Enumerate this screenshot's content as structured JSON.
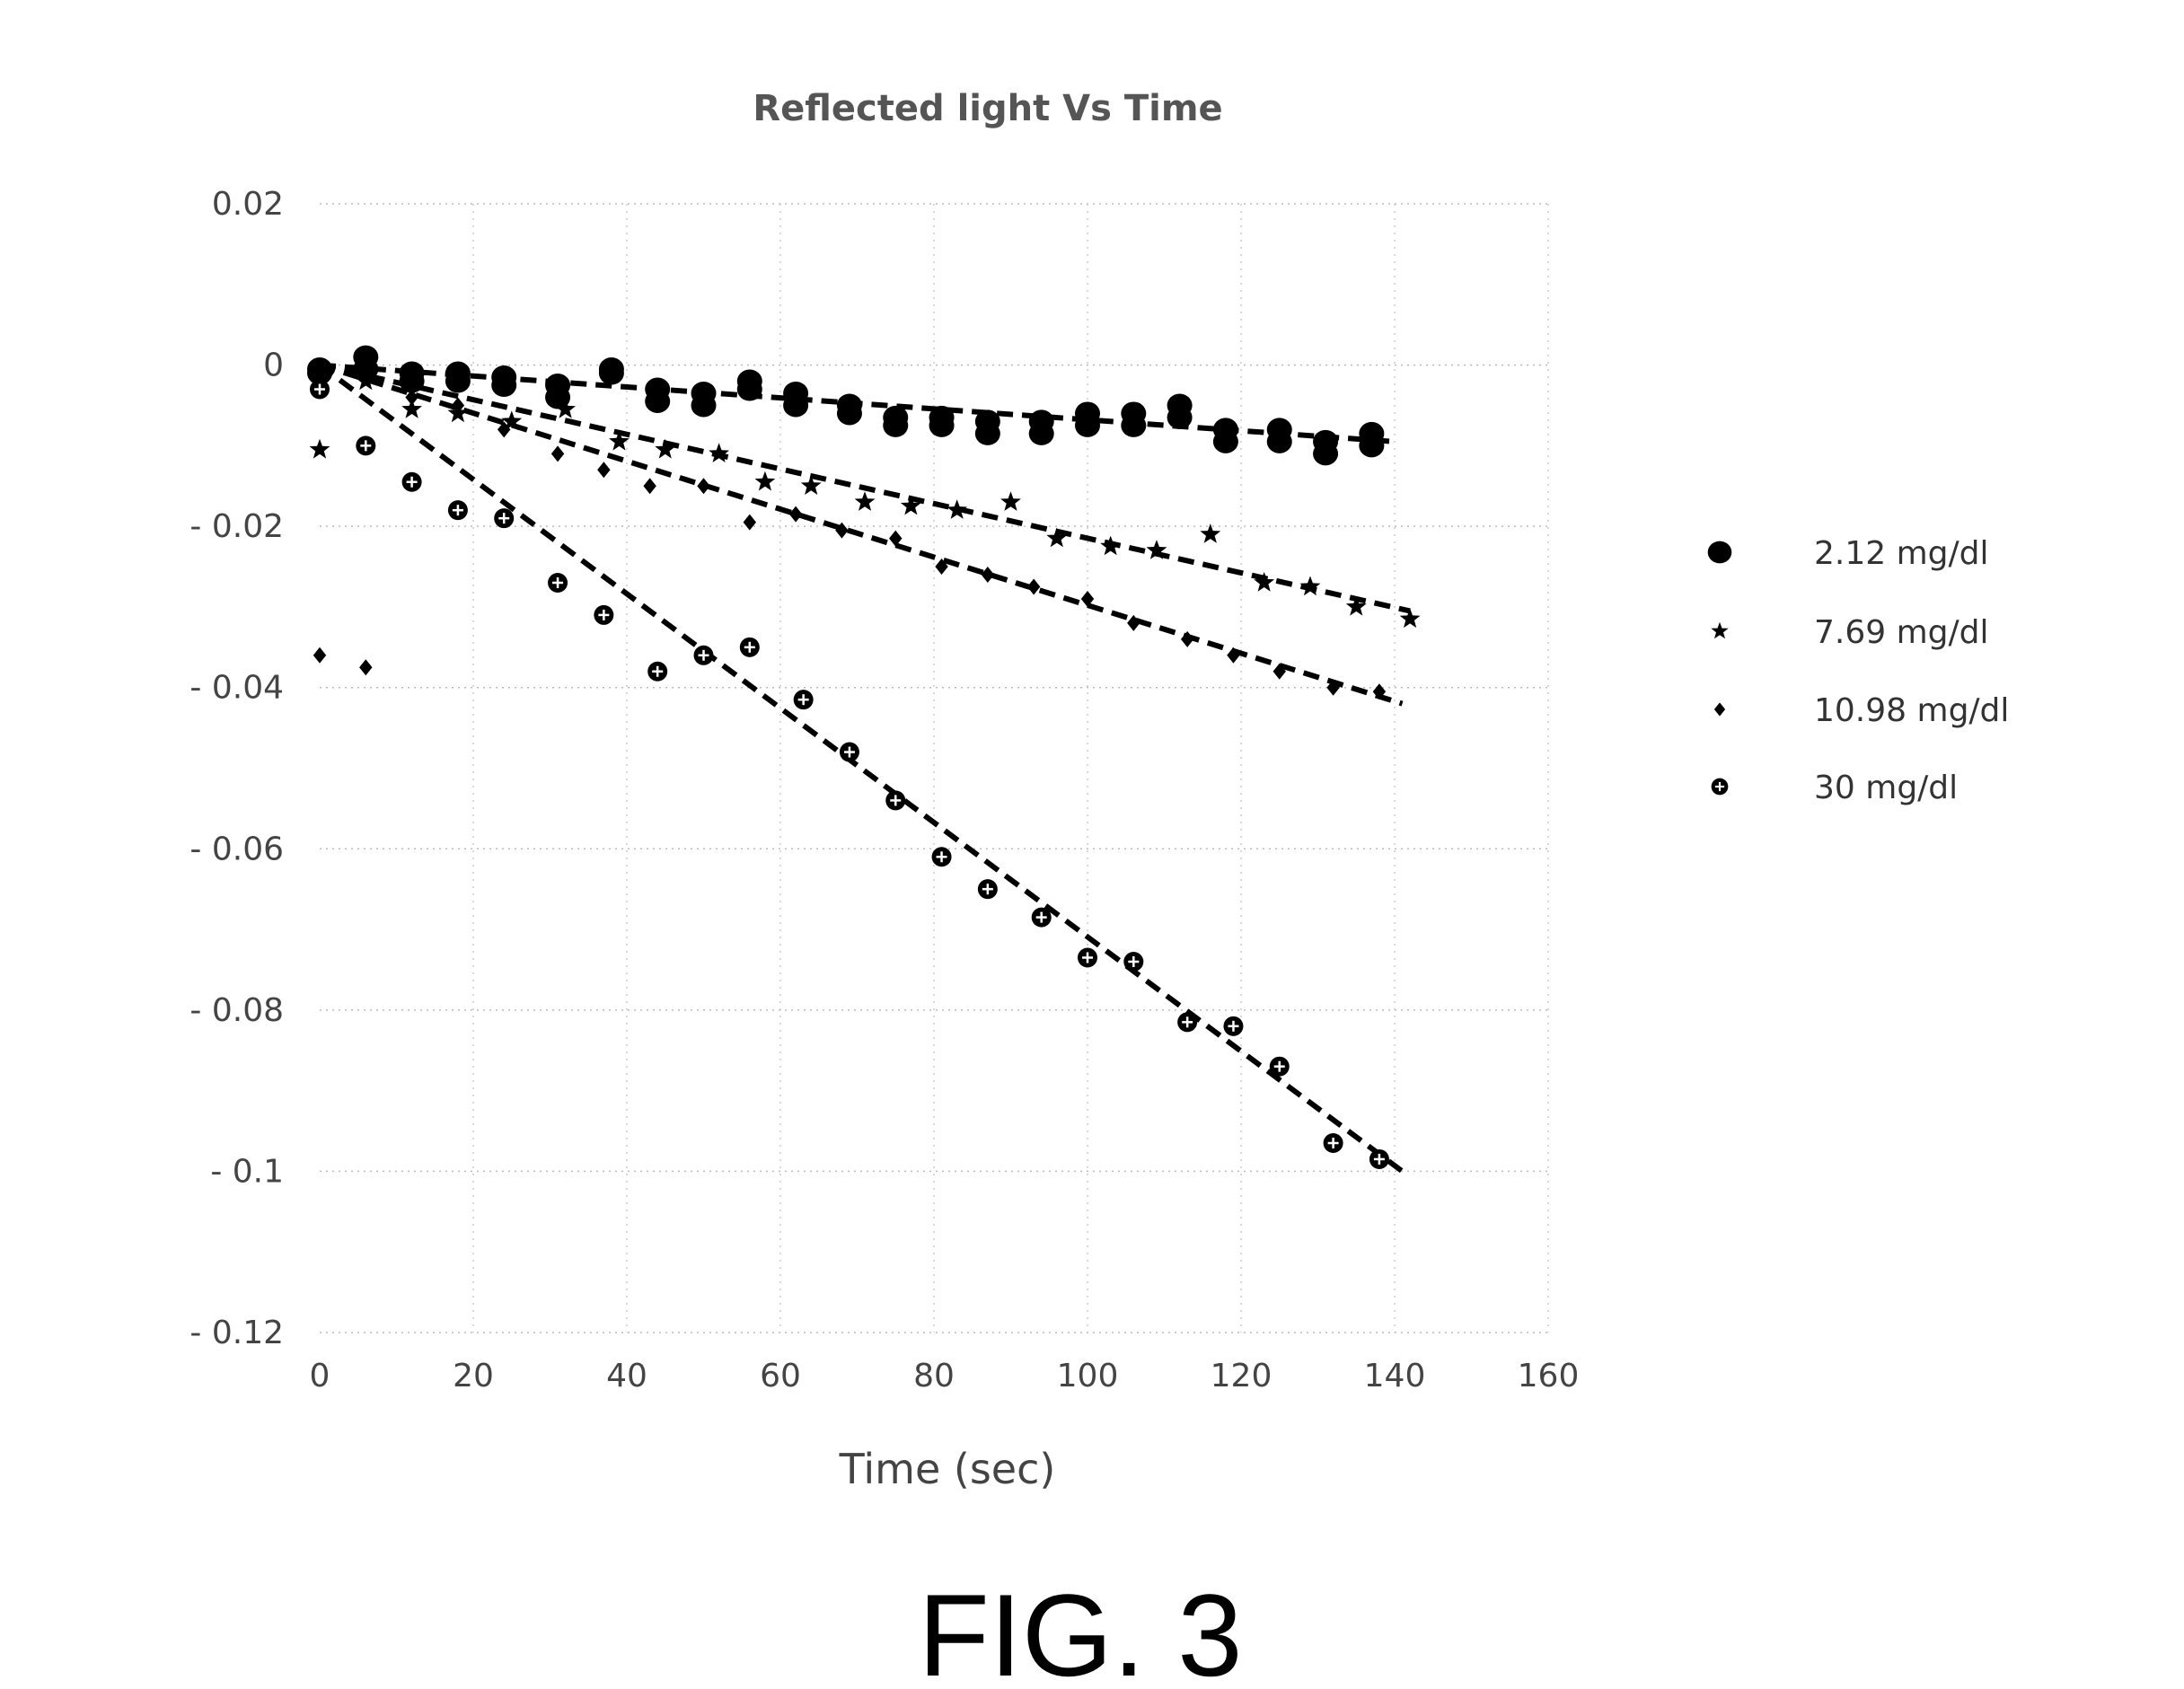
{
  "figure_label": "FIG. 3",
  "chart_data": {
    "type": "scatter",
    "title": "Reflected light Vs Time",
    "xlabel": "Time (sec)",
    "ylabel": "",
    "xlim": [
      0,
      160
    ],
    "ylim": [
      -0.12,
      0.02
    ],
    "x_ticks": [
      0,
      20,
      40,
      60,
      80,
      100,
      120,
      140,
      160
    ],
    "y_ticks": [
      0.02,
      0,
      -0.02,
      -0.04,
      -0.06,
      -0.08,
      -0.1,
      -0.12
    ],
    "x_tick_labels": [
      "0",
      "20",
      "40",
      "60",
      "80",
      "100",
      "120",
      "140",
      "160"
    ],
    "y_tick_labels": [
      "0.02",
      "0",
      "- 0.02",
      "- 0.04",
      "- 0.06",
      "- 0.08",
      "- 0.1",
      "- 0.12"
    ],
    "grid": "dotted",
    "legend_position": "right",
    "series": [
      {
        "name": "2.12 mg/dl",
        "marker": "circle",
        "color": "#000000",
        "trendline": [
          [
            0,
            0
          ],
          [
            140,
            -0.0095
          ]
        ],
        "points": [
          [
            0,
            -0.0005
          ],
          [
            0,
            -0.001
          ],
          [
            6,
            0.001
          ],
          [
            6,
            -0.0005
          ],
          [
            12,
            -0.001
          ],
          [
            12,
            -0.002
          ],
          [
            18,
            -0.001
          ],
          [
            18,
            -0.002
          ],
          [
            24,
            -0.0015
          ],
          [
            24,
            -0.0025
          ],
          [
            31,
            -0.0025
          ],
          [
            31,
            -0.004
          ],
          [
            38,
            -0.0005
          ],
          [
            38,
            -0.001
          ],
          [
            44,
            -0.003
          ],
          [
            44,
            -0.0045
          ],
          [
            50,
            -0.0035
          ],
          [
            50,
            -0.005
          ],
          [
            56,
            -0.002
          ],
          [
            56,
            -0.003
          ],
          [
            62,
            -0.0035
          ],
          [
            62,
            -0.005
          ],
          [
            69,
            -0.005
          ],
          [
            69,
            -0.006
          ],
          [
            75,
            -0.0065
          ],
          [
            75,
            -0.0075
          ],
          [
            81,
            -0.0065
          ],
          [
            81,
            -0.0075
          ],
          [
            87,
            -0.007
          ],
          [
            87,
            -0.0085
          ],
          [
            94,
            -0.007
          ],
          [
            94,
            -0.0085
          ],
          [
            100,
            -0.006
          ],
          [
            100,
            -0.0075
          ],
          [
            106,
            -0.006
          ],
          [
            106,
            -0.0075
          ],
          [
            112,
            -0.005
          ],
          [
            112,
            -0.0065
          ],
          [
            118,
            -0.008
          ],
          [
            118,
            -0.0095
          ],
          [
            125,
            -0.008
          ],
          [
            125,
            -0.0095
          ],
          [
            131,
            -0.0095
          ],
          [
            131,
            -0.011
          ],
          [
            137,
            -0.0085
          ],
          [
            137,
            -0.01
          ]
        ]
      },
      {
        "name": "7.69 mg/dl",
        "marker": "star",
        "color": "#000000",
        "trendline": [
          [
            0,
            0
          ],
          [
            142,
            -0.0305
          ]
        ],
        "points": [
          [
            0,
            -0.0105
          ],
          [
            6,
            -0.002
          ],
          [
            12,
            -0.0055
          ],
          [
            18,
            -0.006
          ],
          [
            25,
            -0.007
          ],
          [
            32,
            -0.0055
          ],
          [
            39,
            -0.0095
          ],
          [
            45,
            -0.0105
          ],
          [
            52,
            -0.011
          ],
          [
            58,
            -0.0145
          ],
          [
            64,
            -0.015
          ],
          [
            71,
            -0.017
          ],
          [
            77,
            -0.0175
          ],
          [
            83,
            -0.018
          ],
          [
            90,
            -0.017
          ],
          [
            96,
            -0.0215
          ],
          [
            103,
            -0.0225
          ],
          [
            109,
            -0.023
          ],
          [
            116,
            -0.021
          ],
          [
            123,
            -0.027
          ],
          [
            129,
            -0.0275
          ],
          [
            135,
            -0.03
          ],
          [
            142,
            -0.0315
          ]
        ]
      },
      {
        "name": "10.98 mg/dl",
        "marker": "diamond",
        "color": "#000000",
        "trendline": [
          [
            0,
            0
          ],
          [
            141,
            -0.042
          ]
        ],
        "points": [
          [
            0,
            -0.036
          ],
          [
            6,
            -0.0375
          ],
          [
            12,
            -0.004
          ],
          [
            18,
            -0.005
          ],
          [
            24,
            -0.008
          ],
          [
            31,
            -0.011
          ],
          [
            37,
            -0.013
          ],
          [
            43,
            -0.015
          ],
          [
            50,
            -0.015
          ],
          [
            56,
            -0.0195
          ],
          [
            62,
            -0.0185
          ],
          [
            68,
            -0.0205
          ],
          [
            75,
            -0.0215
          ],
          [
            81,
            -0.025
          ],
          [
            87,
            -0.026
          ],
          [
            93,
            -0.0275
          ],
          [
            100,
            -0.029
          ],
          [
            106,
            -0.032
          ],
          [
            113,
            -0.034
          ],
          [
            119,
            -0.036
          ],
          [
            125,
            -0.038
          ],
          [
            132,
            -0.04
          ],
          [
            138,
            -0.0405
          ]
        ]
      },
      {
        "name": "30 mg/dl",
        "marker": "circle-plus",
        "color": "#000000",
        "trendline": [
          [
            0,
            0
          ],
          [
            141,
            -0.1
          ]
        ],
        "points": [
          [
            0,
            -0.003
          ],
          [
            6,
            -0.01
          ],
          [
            12,
            -0.0145
          ],
          [
            18,
            -0.018
          ],
          [
            24,
            -0.019
          ],
          [
            31,
            -0.027
          ],
          [
            37,
            -0.031
          ],
          [
            44,
            -0.038
          ],
          [
            50,
            -0.036
          ],
          [
            56,
            -0.035
          ],
          [
            63,
            -0.0415
          ],
          [
            69,
            -0.048
          ],
          [
            75,
            -0.054
          ],
          [
            81,
            -0.061
          ],
          [
            87,
            -0.065
          ],
          [
            94,
            -0.0685
          ],
          [
            100,
            -0.0735
          ],
          [
            106,
            -0.074
          ],
          [
            113,
            -0.0815
          ],
          [
            119,
            -0.082
          ],
          [
            125,
            -0.087
          ],
          [
            132,
            -0.0965
          ],
          [
            138,
            -0.0985
          ]
        ]
      }
    ]
  }
}
